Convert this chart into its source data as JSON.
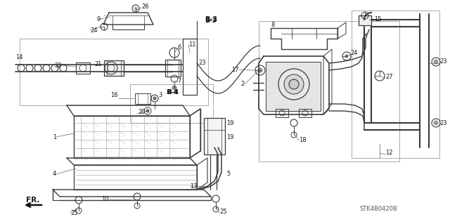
{
  "background_color": "#ffffff",
  "line_color": "#3a3a3a",
  "text_color": "#1a1a1a",
  "watermark": "STK4B0420B",
  "fig_width": 6.4,
  "fig_height": 3.19,
  "dpi": 100
}
